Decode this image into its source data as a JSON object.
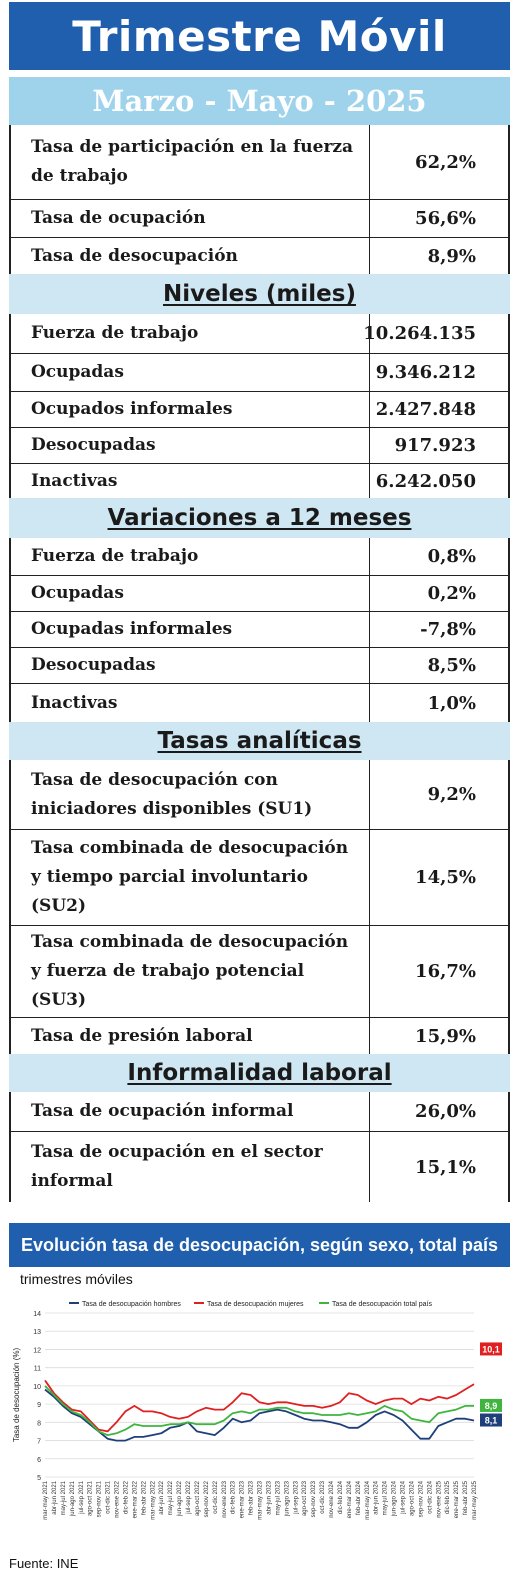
{
  "title": "Trimestre Móvil",
  "period": "Marzo - Mayo - 2025",
  "tasas": [
    {
      "label": "Tasa de participación en la fuerza de trabajo",
      "value": "62,2%"
    },
    {
      "label": "Tasa de ocupación",
      "value": "56,6%"
    },
    {
      "label": "Tasa de desocupación",
      "value": "8,9%"
    }
  ],
  "niveles": {
    "heading": "Niveles  (miles)",
    "rows": [
      {
        "label": "Fuerza de trabajo",
        "value": "10.264.135"
      },
      {
        "label": "Ocupadas",
        "value": "9.346.212"
      },
      {
        "label": "Ocupados informales",
        "value": "2.427.848"
      },
      {
        "label": "Desocupadas",
        "value": "917.923"
      },
      {
        "label": "Inactivas",
        "value": "6.242.050"
      }
    ]
  },
  "variaciones": {
    "heading": "Variaciones a 12 meses",
    "rows": [
      {
        "label": "Fuerza de trabajo",
        "value": "0,8%"
      },
      {
        "label": "Ocupadas",
        "value": "0,2%"
      },
      {
        "label": "Ocupadas informales",
        "value": "-7,8%"
      },
      {
        "label": "Desocupadas",
        "value": "8,5%"
      },
      {
        "label": "Inactivas",
        "value": "1,0%"
      }
    ]
  },
  "analiticas": {
    "heading": "Tasas  analíticas",
    "rows": [
      {
        "label": "Tasa de desocupación con iniciadores disponibles (SU1)",
        "value": "9,2%"
      },
      {
        "label": "Tasa combinada de desocupación y tiempo parcial involuntario (SU2)",
        "value": "14,5%"
      },
      {
        "label": "Tasa combinada de desocupación y fuerza de trabajo potencial (SU3)",
        "value": "16,7%"
      },
      {
        "label": "Tasa de presión laboral",
        "value": "15,9%"
      }
    ]
  },
  "informalidad": {
    "heading": "Informalidad  laboral",
    "rows": [
      {
        "label": "Tasa de ocupación informal",
        "value": "26,0%"
      },
      {
        "label": "Tasa de ocupación en el sector informal",
        "value": "15,1%"
      }
    ]
  },
  "chart_title": "Evolución tasa de desocupación, según sexo, total país",
  "chart_subtitle": "trimestres móviles",
  "source": "Fuente: INE",
  "colors": {
    "hombres": "#1f3f7a",
    "mujeres": "#e02020",
    "total": "#3fb53f",
    "banner": "#1f5fae",
    "period": "#9fd3ec",
    "section": "#cfe7f3"
  },
  "chart_data": {
    "type": "line",
    "ylabel": "Tasa de desocupación (%)",
    "ylim": [
      5,
      14
    ],
    "yticks": [
      5,
      6,
      7,
      8,
      9,
      10,
      11,
      12,
      13,
      14
    ],
    "grid": true,
    "legend_position": "top",
    "x": [
      "mar-may 2021",
      "abr-jun 2021",
      "may-jul 2021",
      "jun-ago 2021",
      "jul-sep 2021",
      "ago-oct 2021",
      "sep-nov 2021",
      "oct-dic 2021",
      "nov-ene 2022",
      "dic-feb 2022",
      "ene-mar 2022",
      "feb-abr 2022",
      "mar-may 2022",
      "abr-jun 2022",
      "may-jul 2022",
      "jun-ago 2022",
      "jul-sep 2022",
      "ago-oct 2022",
      "sep-nov 2022",
      "oct-dic 2022",
      "nov-ene 2023",
      "dic-feb 2023",
      "ene-mar 2023",
      "feb-abr 2023",
      "mar-may 2023",
      "abr-jun 2023",
      "may-jul 2023",
      "jun-ago 2023",
      "jul-sep 2023",
      "ago-oct 2023",
      "sep-nov 2023",
      "oct-dic 2023",
      "nov-ene 2024",
      "dic-feb 2024",
      "ene-mar 2024",
      "feb-abr 2024",
      "mar-may 2024",
      "abr-jun 2024",
      "may-jul 2024",
      "jun-ago 2024",
      "jul-sep 2024",
      "ago-oct 2024",
      "sep-nov 2024",
      "oct-dic 2024",
      "nov-ene 2025",
      "dic-feb 2025",
      "ene-mar 2025",
      "feb-abr 2025",
      "mar-may 2025"
    ],
    "series": [
      {
        "name": "Tasa de desocupación hombres",
        "color": "#1f3f7a",
        "values": [
          9.8,
          9.4,
          8.9,
          8.5,
          8.3,
          7.9,
          7.5,
          7.1,
          7.0,
          7.0,
          7.2,
          7.2,
          7.3,
          7.4,
          7.7,
          7.8,
          8.0,
          7.5,
          7.4,
          7.3,
          7.7,
          8.2,
          8.0,
          8.1,
          8.5,
          8.6,
          8.7,
          8.6,
          8.4,
          8.2,
          8.1,
          8.1,
          8.0,
          7.9,
          7.7,
          7.7,
          8.0,
          8.4,
          8.6,
          8.4,
          8.1,
          7.6,
          7.1,
          7.1,
          7.8,
          8.0,
          8.2,
          8.2,
          8.1
        ]
      },
      {
        "name": "Tasa de desocupación mujeres",
        "color": "#e02020",
        "values": [
          10.3,
          9.6,
          9.1,
          8.7,
          8.6,
          8.1,
          7.6,
          7.5,
          8.0,
          8.6,
          8.9,
          8.6,
          8.6,
          8.5,
          8.3,
          8.2,
          8.3,
          8.6,
          8.8,
          8.7,
          8.7,
          9.1,
          9.6,
          9.5,
          9.1,
          9.0,
          9.1,
          9.1,
          9.0,
          8.9,
          8.9,
          8.8,
          8.9,
          9.1,
          9.6,
          9.5,
          9.2,
          9.0,
          9.2,
          9.3,
          9.3,
          9.0,
          9.3,
          9.2,
          9.4,
          9.3,
          9.5,
          9.8,
          10.1
        ]
      },
      {
        "name": "Tasa de desocupación total país",
        "color": "#3fb53f",
        "values": [
          10.0,
          9.5,
          9.0,
          8.6,
          8.4,
          8.0,
          7.5,
          7.3,
          7.4,
          7.6,
          7.9,
          7.8,
          7.8,
          7.8,
          7.9,
          7.9,
          8.0,
          7.9,
          7.9,
          7.9,
          8.1,
          8.5,
          8.6,
          8.5,
          8.7,
          8.7,
          8.8,
          8.8,
          8.6,
          8.5,
          8.5,
          8.4,
          8.4,
          8.4,
          8.5,
          8.4,
          8.5,
          8.6,
          8.9,
          8.7,
          8.6,
          8.2,
          8.1,
          8.0,
          8.5,
          8.6,
          8.7,
          8.9,
          8.9
        ]
      }
    ],
    "end_labels": [
      {
        "series": "Tasa de desocupación mujeres",
        "text": "10,1"
      },
      {
        "series": "Tasa de desocupación total país",
        "text": "8,9"
      },
      {
        "series": "Tasa de desocupación hombres",
        "text": "8,1"
      }
    ]
  }
}
